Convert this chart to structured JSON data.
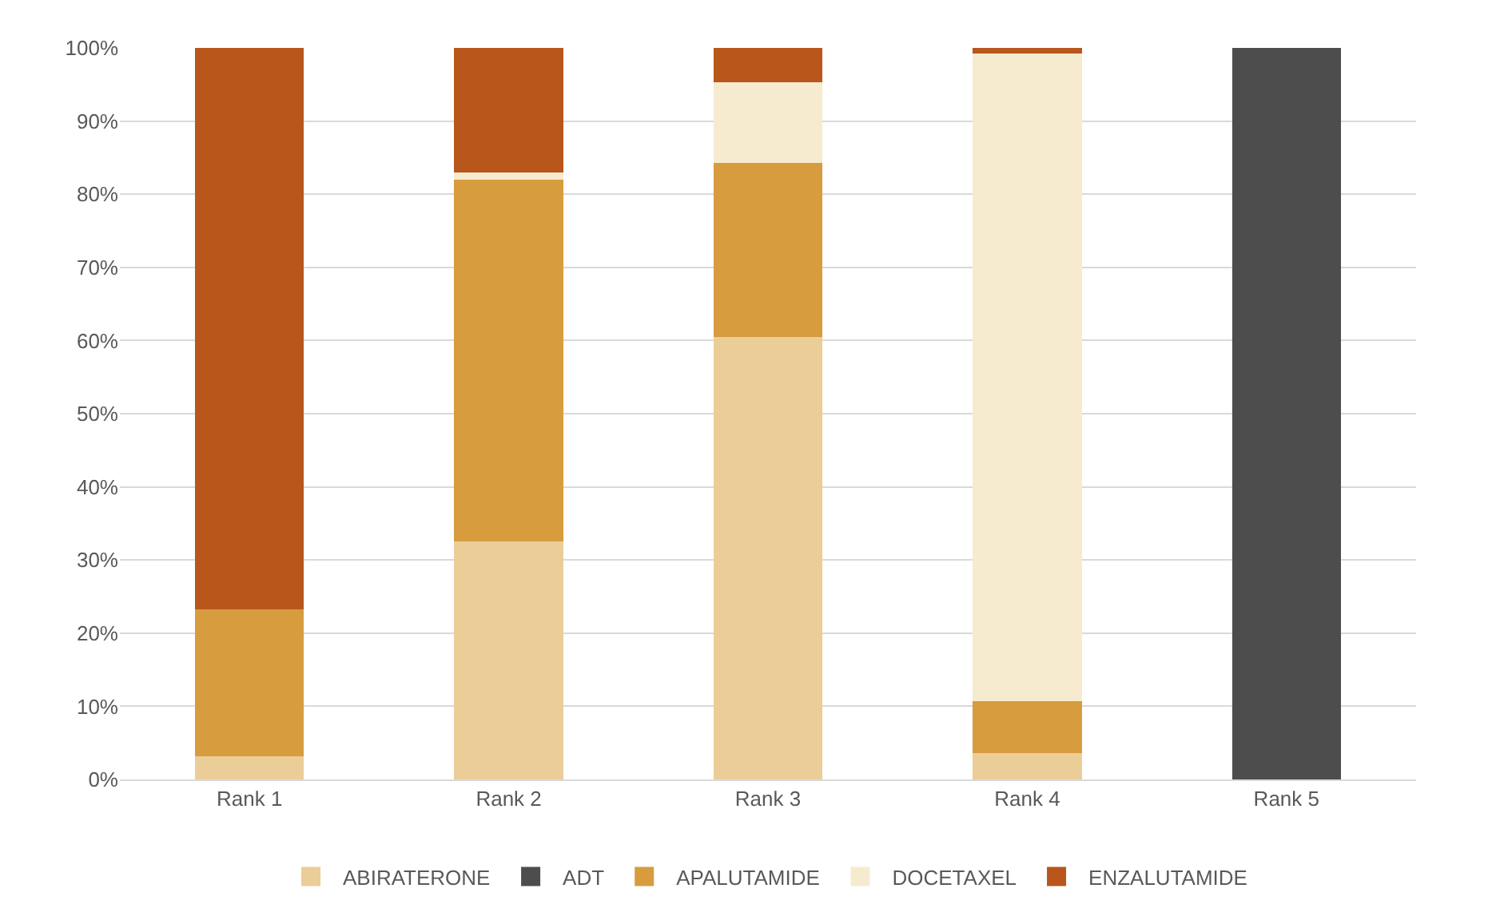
{
  "chart_data": {
    "type": "bar",
    "stacked": true,
    "categories": [
      "Rank 1",
      "Rank 2",
      "Rank 3",
      "Rank 4",
      "Rank 5"
    ],
    "series": [
      {
        "name": "ABIRATERONE",
        "color": "#ebcd98",
        "values": [
          3.2,
          32.5,
          60.5,
          3.6,
          0
        ]
      },
      {
        "name": "ADT",
        "color": "#4d4d4d",
        "values": [
          0,
          0,
          0,
          0,
          100
        ]
      },
      {
        "name": "APALUTAMIDE",
        "color": "#d69c3e",
        "values": [
          20,
          49.5,
          23.8,
          7.1,
          0
        ]
      },
      {
        "name": "DOCETAXEL",
        "color": "#f7ebcf",
        "values": [
          0,
          1,
          11,
          88.5,
          0
        ]
      },
      {
        "name": "ENZALUTAMIDE",
        "color": "#b8561c",
        "values": [
          76.8,
          17,
          4.7,
          0.8,
          0
        ]
      }
    ],
    "ylim": [
      0,
      100
    ],
    "yticks": [
      {
        "value": 0,
        "label": "0%"
      },
      {
        "value": 10,
        "label": "10%"
      },
      {
        "value": 20,
        "label": "20%"
      },
      {
        "value": 30,
        "label": "30%"
      },
      {
        "value": 40,
        "label": "40%"
      },
      {
        "value": 50,
        "label": "50%"
      },
      {
        "value": 60,
        "label": "60%"
      },
      {
        "value": 70,
        "label": "70%"
      },
      {
        "value": 80,
        "label": "80%"
      },
      {
        "value": 90,
        "label": "90%"
      },
      {
        "value": 100,
        "label": "100%"
      }
    ],
    "grid": "y",
    "legend": "bottom"
  }
}
